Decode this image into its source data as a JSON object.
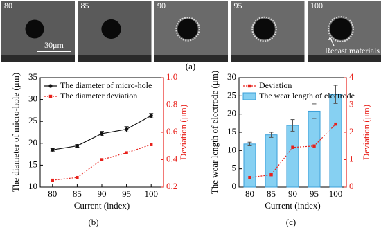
{
  "micrographs": {
    "labels": [
      "80",
      "85",
      "90",
      "95",
      "100"
    ],
    "scale_bar": "30μm",
    "annotation": "Recast materials",
    "caption": "(a)"
  },
  "chart_data": [
    {
      "type": "line",
      "caption": "(b)",
      "xlabel": "Current (index)",
      "ylabel": "The diameter of micro-hole (μm)",
      "y2label": "Deviation (μm)",
      "categories": [
        "80",
        "85",
        "90",
        "95",
        "100"
      ],
      "ylim": [
        10,
        35
      ],
      "yticks": [
        10,
        15,
        20,
        25,
        30,
        35
      ],
      "y2lim": [
        0.2,
        1.0
      ],
      "y2ticks": [
        0.2,
        0.4,
        0.6,
        0.8,
        {
          "value": 1.0,
          "label": "1.0"
        }
      ],
      "y2color": "#e8201a",
      "legend": "upper left",
      "series": [
        {
          "name": "The diameter of micro-hole",
          "type": "line",
          "color": "#111111",
          "linestyle": "solid",
          "marker": "circle",
          "values": [
            18.5,
            19.4,
            22.2,
            23.2,
            26.3
          ],
          "errors": [
            0.3,
            0.3,
            0.5,
            0.6,
            0.5
          ]
        },
        {
          "name": "The diameter deviation",
          "type": "line",
          "color": "#e8201a",
          "linestyle": "dotted",
          "marker": "square",
          "axis": "y2",
          "values": [
            0.25,
            0.27,
            0.4,
            0.45,
            0.51
          ]
        }
      ]
    },
    {
      "type": "bar",
      "caption": "(c)",
      "xlabel": "Current (index)",
      "ylabel": "The wear length of electrode (μm)",
      "y2label": "Deviation (μm)",
      "categories": [
        "80",
        "85",
        "90",
        "95",
        "100"
      ],
      "ylim": [
        0,
        30
      ],
      "yticks": [
        0,
        5,
        10,
        15,
        20,
        25,
        30
      ],
      "y2lim": [
        0,
        4
      ],
      "y2ticks": [
        0,
        1,
        2,
        3,
        4
      ],
      "y2color": "#e8201a",
      "legend": "upper left",
      "series": [
        {
          "name": "Deviation",
          "type": "line",
          "color": "#e8201a",
          "linestyle": "dotted",
          "marker": "square",
          "axis": "y2",
          "values": [
            0.35,
            0.45,
            1.45,
            1.5,
            2.3
          ]
        },
        {
          "name": "The wear length of electrode",
          "type": "bar",
          "color": "#86d0f2",
          "edgecolor": "#3a9fd8",
          "values": [
            11.8,
            14.3,
            16.9,
            20.8,
            25.4
          ],
          "errors": [
            0.5,
            0.7,
            1.6,
            2.0,
            2.5
          ]
        }
      ]
    }
  ]
}
